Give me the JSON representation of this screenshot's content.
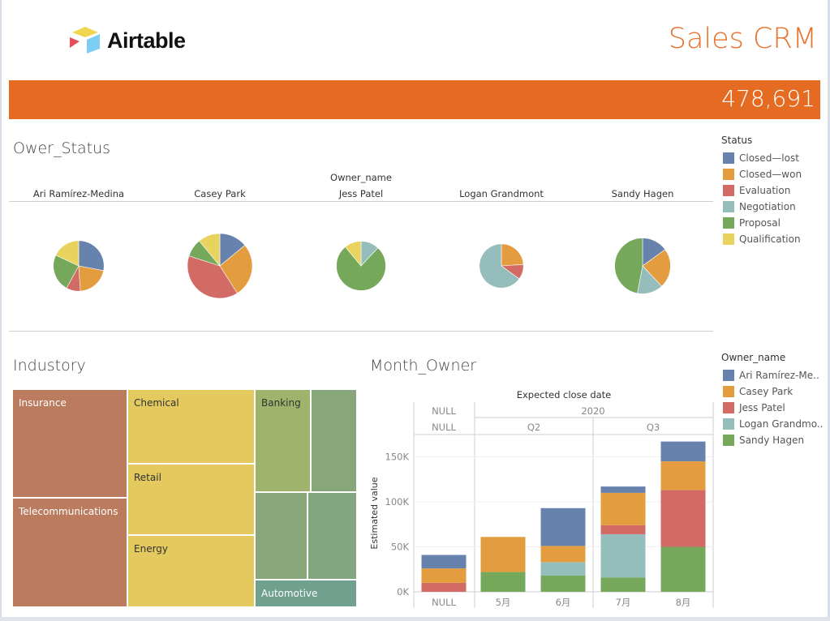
{
  "header": {
    "logo_text": "Airtable",
    "app_title": "Sales CRM",
    "kpi_value": "478,691"
  },
  "colors": {
    "accent": "#e56b22",
    "title": "#e8702a",
    "closed_lost": "#6782ad",
    "closed_won": "#e39d3f",
    "evaluation": "#d26a65",
    "negotiation": "#94bdbb",
    "proposal": "#76a85c",
    "qualification": "#e8d35f"
  },
  "status_legend": {
    "title": "Status",
    "items": [
      {
        "label": "Closed—lost",
        "color": "#6782ad"
      },
      {
        "label": "Closed—won",
        "color": "#e39d3f"
      },
      {
        "label": "Evaluation",
        "color": "#d26a65"
      },
      {
        "label": "Negotiation",
        "color": "#94bdbb"
      },
      {
        "label": "Proposal",
        "color": "#76a85c"
      },
      {
        "label": "Qualification",
        "color": "#e8d35f"
      }
    ]
  },
  "owner_legend": {
    "title": "Owner_name",
    "items": [
      {
        "label": "Ari Ramírez-Me..",
        "color": "#6782ad"
      },
      {
        "label": "Casey Park",
        "color": "#e39d3f"
      },
      {
        "label": "Jess Patel",
        "color": "#d26a65"
      },
      {
        "label": "Logan Grandmo..",
        "color": "#94bdbb"
      },
      {
        "label": "Sandy Hagen",
        "color": "#76a85c"
      }
    ]
  },
  "chart_data": [
    {
      "type": "pie",
      "title": "Ower_Status",
      "column_header": "Owner_name",
      "status_order": [
        "Closed—lost",
        "Closed—won",
        "Evaluation",
        "Negotiation",
        "Proposal",
        "Qualification"
      ],
      "pies": [
        {
          "owner": "Ari Ramírez-Medina",
          "relative_size": 0.78,
          "slices": [
            28,
            21,
            9,
            0,
            24,
            18
          ]
        },
        {
          "owner": "Casey Park",
          "relative_size": 1.0,
          "slices": [
            14,
            27,
            39,
            0,
            9,
            11
          ]
        },
        {
          "owner": "Jess Patel",
          "relative_size": 0.76,
          "slices": [
            0,
            0,
            0,
            12,
            77,
            11
          ]
        },
        {
          "owner": "Logan Grandmont",
          "relative_size": 0.68,
          "slices": [
            0,
            24,
            11,
            65,
            0,
            0
          ]
        },
        {
          "owner": "Sandy Hagen",
          "relative_size": 0.86,
          "slices": [
            15,
            23,
            0,
            15,
            47,
            0
          ]
        }
      ]
    },
    {
      "type": "treemap",
      "title": "Industory",
      "cells": [
        {
          "label": "Insurance",
          "group": "brown",
          "color": "#bb7b5e",
          "label_color": "#ffffff"
        },
        {
          "label": "Telecommunications",
          "group": "brown",
          "color": "#bb7b5e",
          "label_color": "#ffffff"
        },
        {
          "label": "Chemical",
          "group": "yellow",
          "color": "#e3c95e",
          "label_color": "#333333"
        },
        {
          "label": "Retail",
          "group": "yellow",
          "color": "#e3c95e",
          "label_color": "#333333"
        },
        {
          "label": "Energy",
          "group": "yellow",
          "color": "#e3c95e",
          "label_color": "#333333"
        },
        {
          "label": "Banking",
          "group": "green",
          "color": "#a0b36c",
          "label_color": "#333333"
        },
        {
          "label": "",
          "group": "green",
          "color": "#87a77a",
          "label_color": "#333333"
        },
        {
          "label": "",
          "group": "green",
          "color": "#87a77a",
          "label_color": "#333333"
        },
        {
          "label": "",
          "group": "green",
          "color": "#82a67e",
          "label_color": "#333333"
        },
        {
          "label": "Automotive",
          "group": "teal",
          "color": "#70a08e",
          "label_color": "#ffffff"
        }
      ]
    },
    {
      "type": "bar",
      "title": "Month_Owner",
      "stacked": true,
      "column_header": "Expected close date",
      "year_row": [
        "NULL",
        "2020"
      ],
      "quarter_row": [
        "NULL",
        "Q2",
        "Q3"
      ],
      "categories": [
        "NULL",
        "5月",
        "6月",
        "7月",
        "8月"
      ],
      "ylabel": "Estimated value",
      "yticks": [
        "0K",
        "50K",
        "100K",
        "150K"
      ],
      "ylim": [
        0,
        170
      ],
      "unit": "K",
      "series": [
        {
          "name": "Sandy Hagen",
          "color": "#76a85c",
          "values": [
            0,
            22,
            18,
            16,
            50
          ]
        },
        {
          "name": "Logan Grandmont",
          "color": "#94bdbb",
          "values": [
            0,
            0,
            15,
            48,
            0
          ]
        },
        {
          "name": "Jess Patel",
          "color": "#d26a65",
          "values": [
            10,
            0,
            0,
            10,
            63
          ]
        },
        {
          "name": "Casey Park",
          "color": "#e39d3f",
          "values": [
            16,
            39,
            18,
            36,
            32
          ]
        },
        {
          "name": "Ari Ramírez-Medina",
          "color": "#6782ad",
          "values": [
            15,
            0,
            42,
            7,
            22
          ]
        }
      ]
    }
  ]
}
